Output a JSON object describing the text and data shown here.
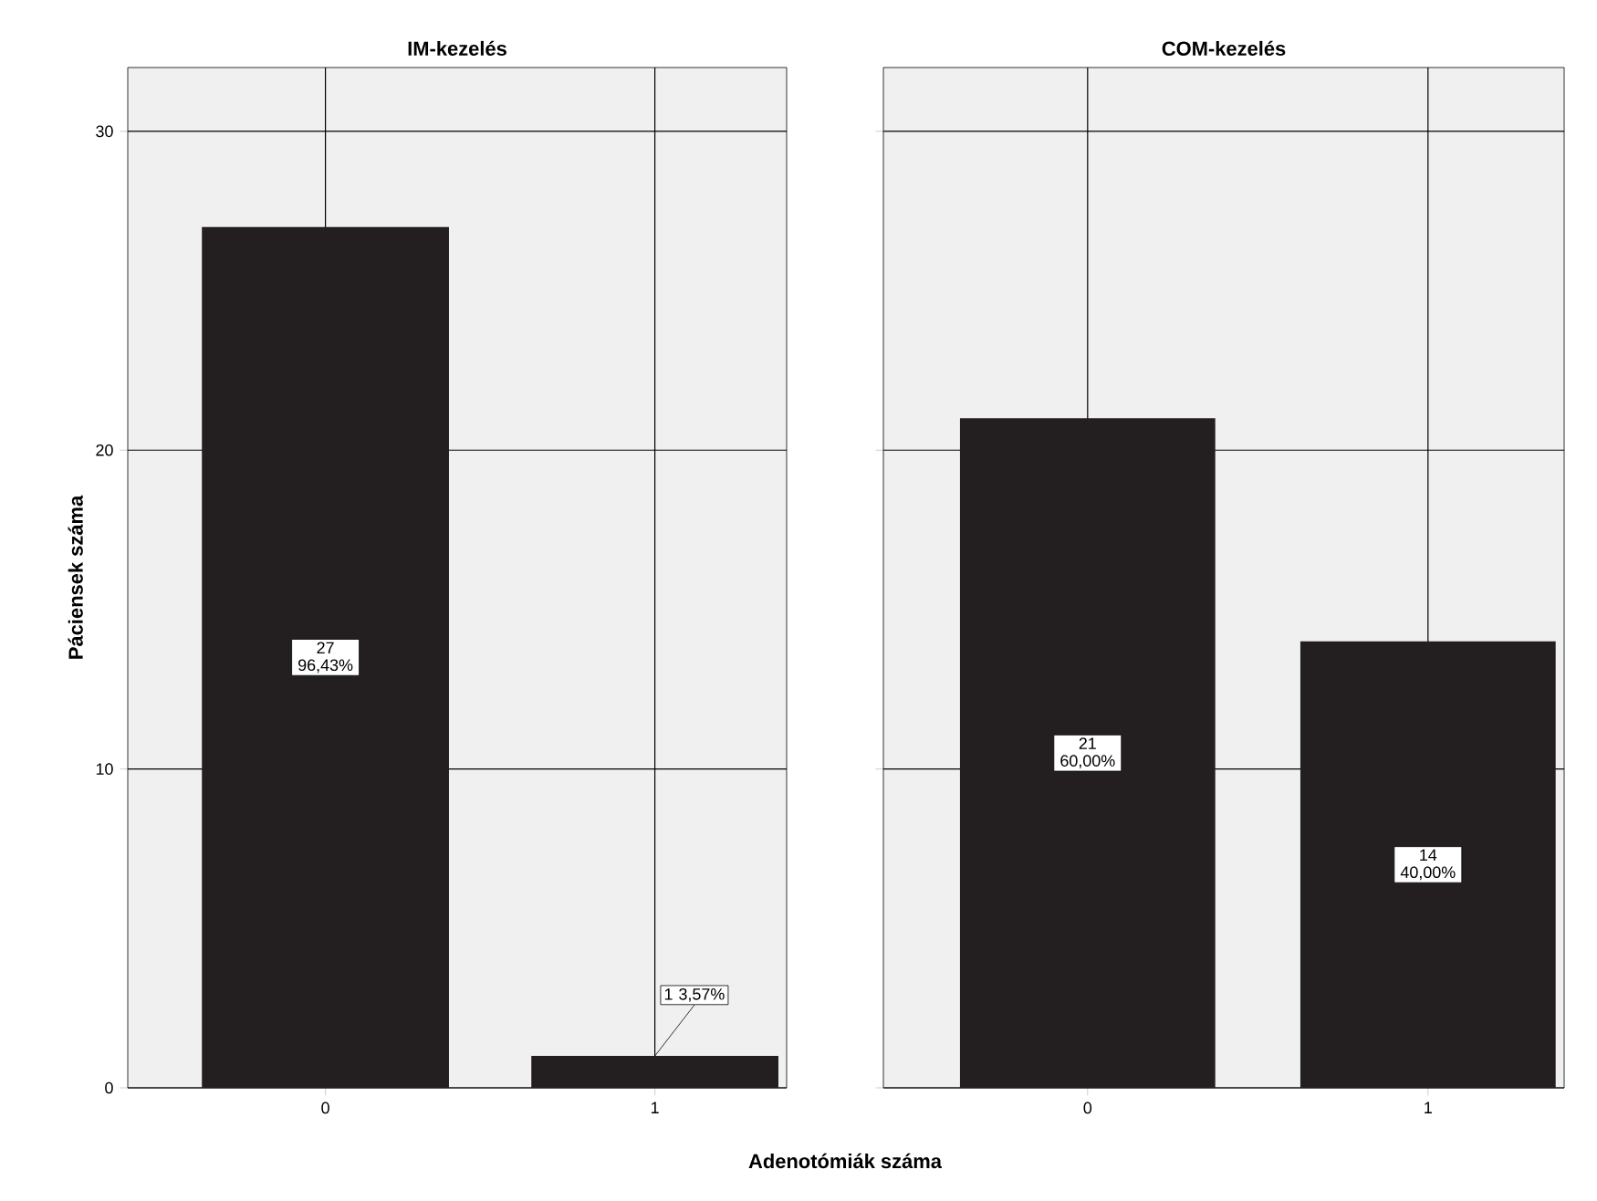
{
  "chart_data": [
    {
      "type": "bar",
      "title": "IM-kezelés",
      "xlabel": "Adenotómiák száma",
      "ylabel": "Páciensek száma",
      "categories": [
        "0",
        "1"
      ],
      "values": [
        27,
        1
      ],
      "color": "#231f20",
      "value_labels": [
        "27 96,43%",
        "1 3,57%"
      ],
      "ylim": [
        0,
        32
      ],
      "yticks": [
        0,
        10,
        20,
        30
      ],
      "grid": true
    },
    {
      "type": "bar",
      "title": "COM-kezelés",
      "categories": [
        "0",
        "1"
      ],
      "values": [
        21,
        14
      ],
      "color": "#231f20",
      "value_labels": [
        "21 60,00%",
        "14 40,00%"
      ],
      "ylim": [
        0,
        32
      ],
      "yticks": [
        0,
        10,
        20,
        30
      ],
      "grid": true,
      "tick_labels": "x"
    }
  ]
}
